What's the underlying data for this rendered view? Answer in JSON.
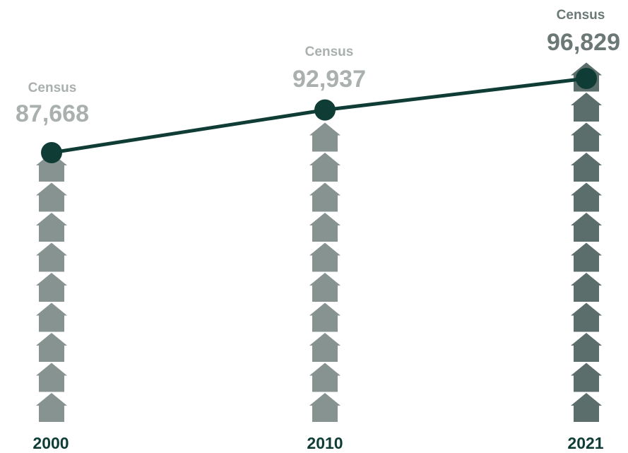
{
  "chart_data": {
    "type": "line",
    "x": [
      "2000",
      "2010",
      "2021"
    ],
    "series": [
      {
        "values": [
          87668,
          92937,
          96829
        ]
      }
    ],
    "annotations": [
      {
        "label": "Census",
        "value": "87,668"
      },
      {
        "label": "Census",
        "value": "92,937"
      },
      {
        "label": "Census",
        "value": "96,829"
      }
    ],
    "house_counts": [
      9,
      10,
      12
    ],
    "colors": {
      "line": "#0f3d36",
      "houses_past": "#879390",
      "houses_latest": "#5c6e6b",
      "label_past": "#a9b0ae",
      "label_latest": "#6b7876",
      "years": "#0f3d36"
    }
  }
}
